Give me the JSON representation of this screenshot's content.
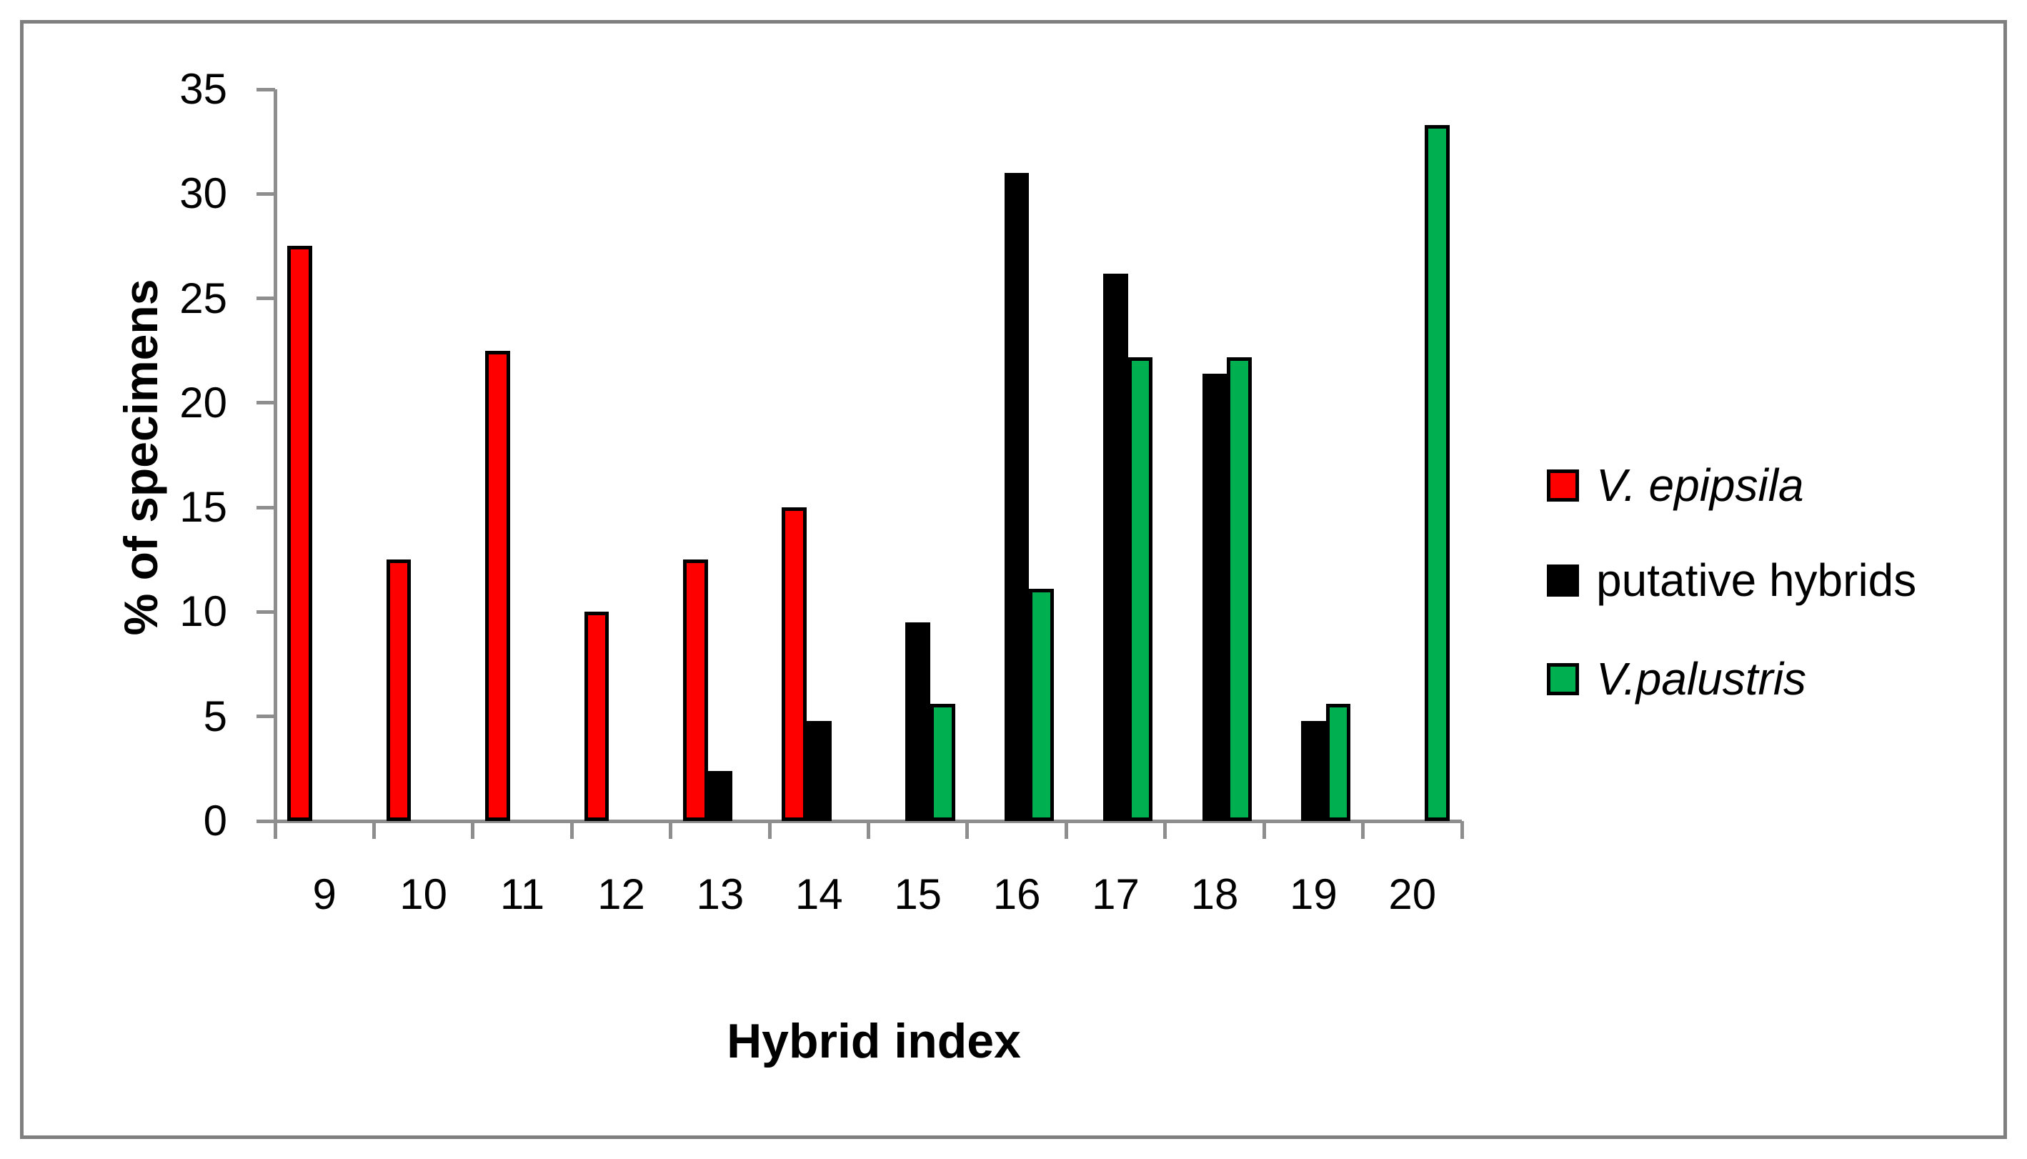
{
  "figure": {
    "background": "#ffffff",
    "frame_border_color": "#7f7f7f"
  },
  "chart_data": {
    "type": "bar",
    "title": "",
    "xlabel": "Hybrid index",
    "ylabel": "% of specimens",
    "categories": [
      "9",
      "10",
      "11",
      "12",
      "13",
      "14",
      "15",
      "16",
      "17",
      "18",
      "19",
      "20"
    ],
    "series": [
      {
        "name": "V. epipsila",
        "color": "#ff0000",
        "legend_italic": true,
        "values": [
          27.5,
          12.5,
          22.5,
          10,
          12.5,
          15,
          0,
          0,
          0,
          0,
          0,
          0
        ]
      },
      {
        "name": "putative hybrids",
        "color": "#000000",
        "legend_italic": false,
        "values": [
          0,
          0,
          0,
          0,
          2.4,
          4.8,
          9.5,
          31,
          26.2,
          21.4,
          4.8,
          0
        ]
      },
      {
        "name": "V.palustris",
        "color": "#00b050",
        "legend_italic": true,
        "values": [
          0,
          0,
          0,
          0,
          0,
          0,
          5.6,
          11.1,
          22.2,
          22.2,
          5.6,
          33.3
        ]
      }
    ],
    "ylim": [
      0,
      35
    ],
    "yticks": [
      0,
      5,
      10,
      15,
      20,
      25,
      30,
      35
    ],
    "grid": false,
    "legend_position": "right",
    "bar_outline_color": "#000000",
    "axis_color": "#8e8e8e"
  }
}
